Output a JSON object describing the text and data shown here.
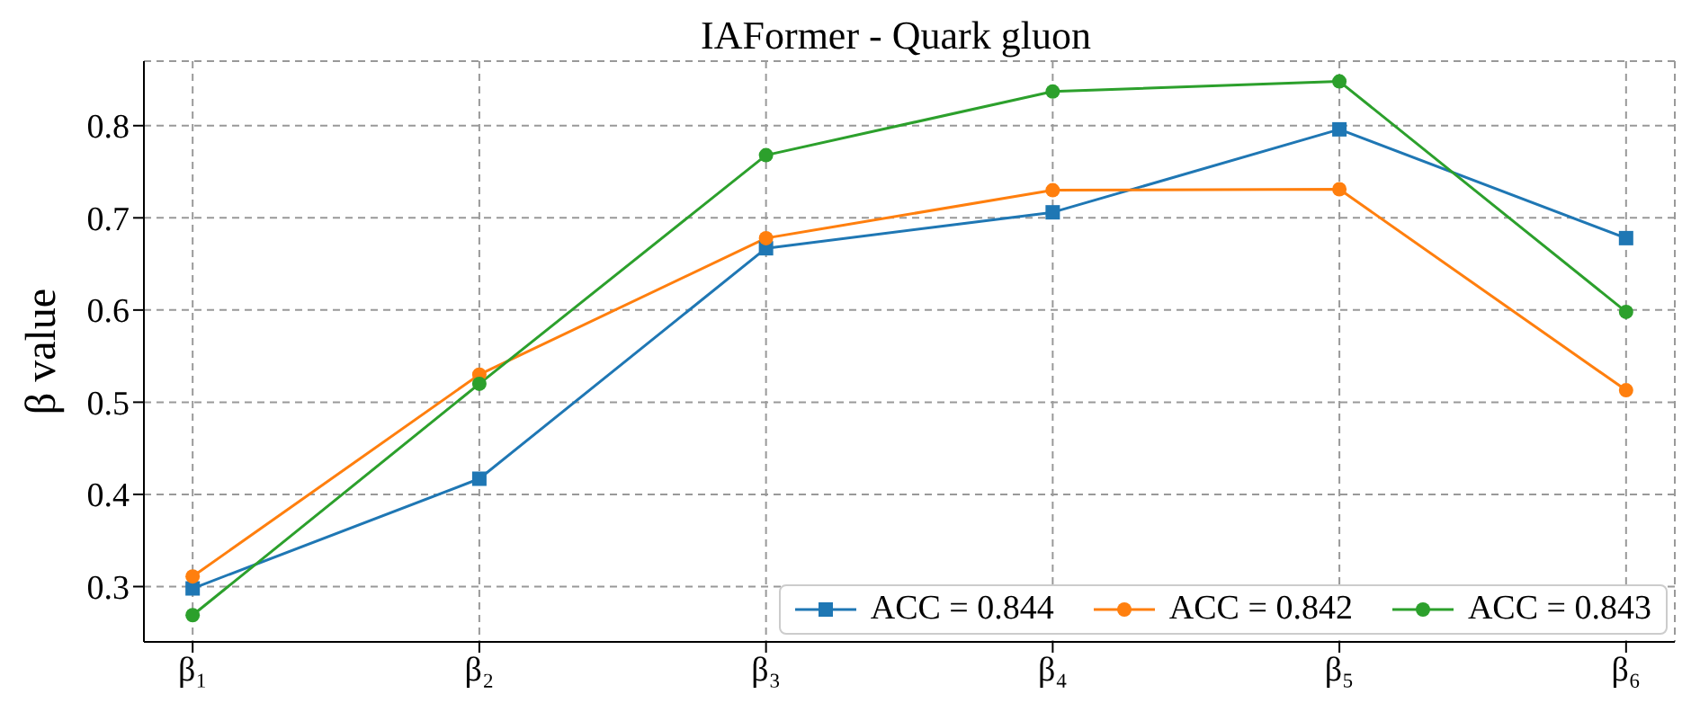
{
  "chart_data": {
    "type": "line",
    "title": "IAFormer - Quark gluon",
    "ylabel": "β value",
    "categories": [
      "β₁",
      "β₂",
      "β₃",
      "β₄",
      "β₅",
      "β₆"
    ],
    "series": [
      {
        "name": "ACC = 0.844",
        "color": "#1f77b4",
        "marker": "square",
        "values": [
          0.298,
          0.417,
          0.667,
          0.706,
          0.796,
          0.678
        ]
      },
      {
        "name": "ACC = 0.842",
        "color": "#ff7f0e",
        "marker": "circle",
        "values": [
          0.311,
          0.53,
          0.678,
          0.73,
          0.731,
          0.513
        ]
      },
      {
        "name": "ACC = 0.843",
        "color": "#2ca02c",
        "marker": "circle",
        "values": [
          0.269,
          0.52,
          0.768,
          0.837,
          0.848,
          0.598
        ]
      }
    ],
    "ylim": [
      0.24,
      0.87
    ],
    "yticks": [
      0.3,
      0.4,
      0.5,
      0.6,
      0.7,
      0.8
    ],
    "grid": true,
    "legend": "bottom right",
    "line_style": "solid"
  }
}
